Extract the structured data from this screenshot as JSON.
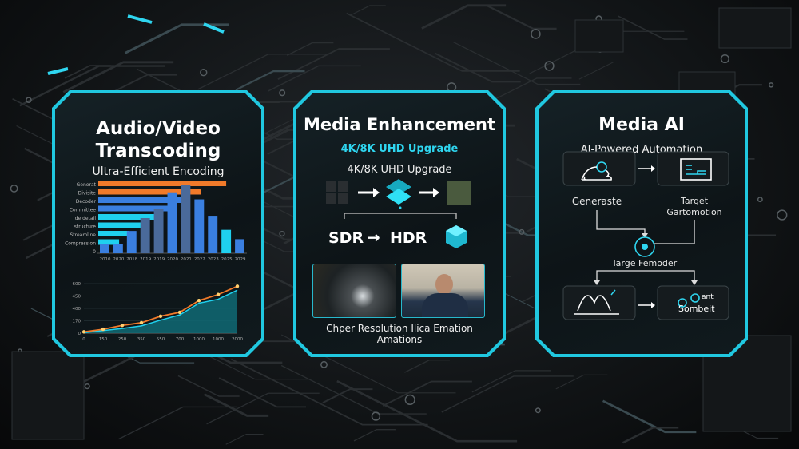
{
  "colors": {
    "accent": "#20c8e0",
    "orange": "#f07a2a",
    "blue": "#3a7fe0",
    "cyan": "#1fd0ee",
    "background": "#0b0d0f"
  },
  "panels": [
    {
      "title_line1": "Audio/Video",
      "title_line2": "Transcoding",
      "subtitle": "Ultra-Efficient Encoding"
    },
    {
      "title": "Media Enhancement",
      "subtitle_accent": "4K/8K UHD Upgrade",
      "subtitle": "4K/8K UHD Upgrade",
      "sdr": "SDR",
      "hdr": "HDR",
      "arrow": "→",
      "caption_line1": "Chper Resolution Ilica Emation",
      "caption_line2": "Amations"
    },
    {
      "title": "Media AI",
      "subtitle": "AI-Powered Automation",
      "node1": "Generaste",
      "node2_line1": "Target",
      "node2_line2": "Gartomotion",
      "node3": "Targe Femoder",
      "node4_line1": "ant",
      "node4_line2": "Sombeit"
    }
  ],
  "chart_data": [
    {
      "type": "bar",
      "orientation": "horizontal",
      "categories": [
        "Generat",
        "Divisite",
        "Decoder",
        "Committee",
        "de detail",
        "structure",
        "Streamline",
        "Compression"
      ],
      "values": [
        92,
        74,
        62,
        52,
        42,
        33,
        22,
        15
      ],
      "zero_label": "0"
    },
    {
      "type": "bar",
      "orientation": "vertical",
      "categories": [
        "2010",
        "2020",
        "2018",
        "2019",
        "2019",
        "2020",
        "2021",
        "2022",
        "2023",
        "2025",
        "2029"
      ],
      "values": [
        8,
        8,
        19,
        30,
        38,
        52,
        58,
        46,
        32,
        20,
        12
      ]
    },
    {
      "type": "line",
      "x_tick_labels": [
        "0",
        "150",
        "250",
        "350",
        "550",
        "700",
        "1000",
        "1000",
        "2000"
      ],
      "y_tick_labels": [
        "0",
        "170",
        "400",
        "450",
        "600"
      ],
      "series": [
        {
          "color": "#f07a2a",
          "values": [
            5,
            15,
            30,
            40,
            65,
            80,
            125,
            148,
            180
          ]
        },
        {
          "color": "#1fd0ee",
          "fill": "area",
          "values": [
            2,
            10,
            18,
            28,
            50,
            70,
            115,
            130,
            165
          ]
        }
      ],
      "ylim": [
        0,
        190
      ]
    }
  ]
}
